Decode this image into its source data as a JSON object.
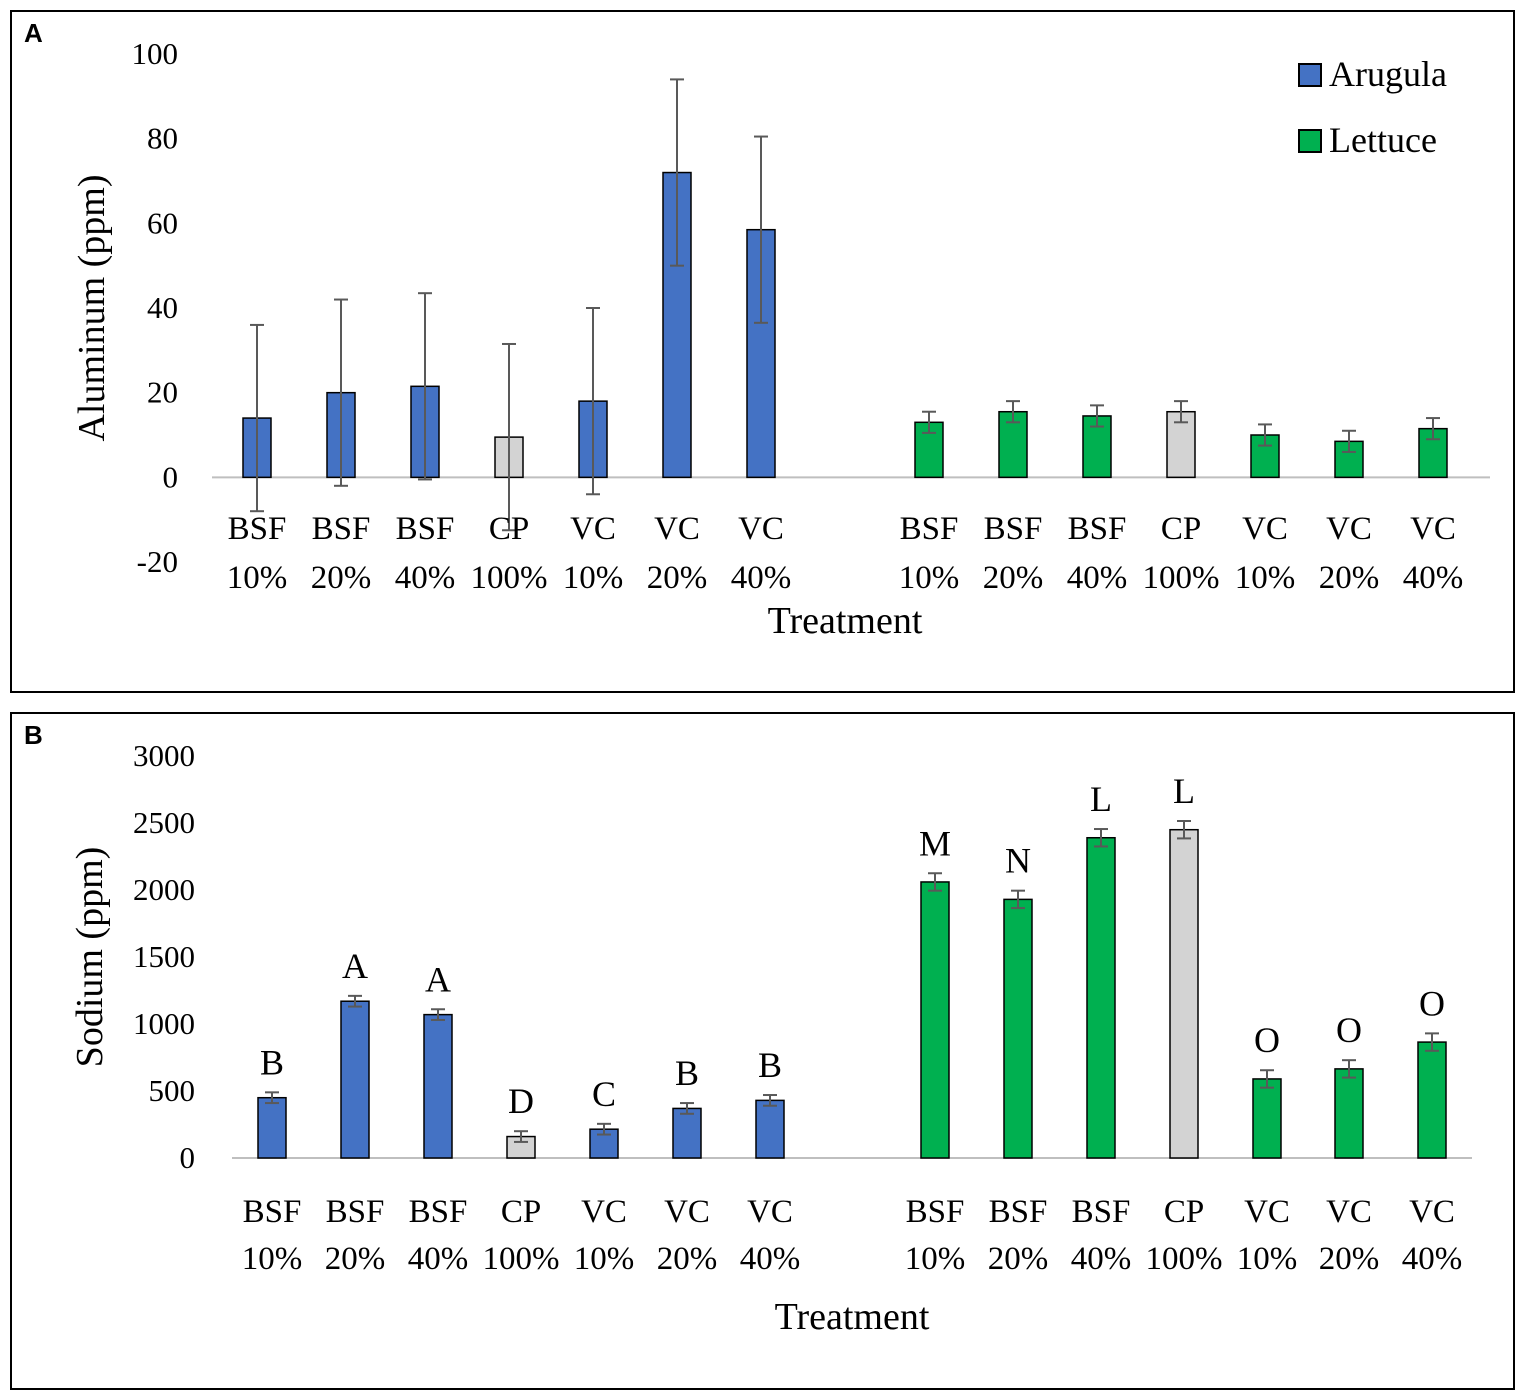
{
  "panels": [
    {
      "letter": "A"
    },
    {
      "letter": "B"
    }
  ],
  "colors": {
    "arugula": "#4472C4",
    "lettuce": "#00B050",
    "control": "#D3D3D3",
    "error_bar": "#595959",
    "axis": "#BFBFBF"
  },
  "chart_data": [
    {
      "type": "bar",
      "title": "",
      "xlabel": "Treatment",
      "ylabel": "Aluminum (ppm)",
      "ylim": [
        -20,
        100
      ],
      "yticks": [
        -20,
        0,
        20,
        40,
        60,
        80,
        100
      ],
      "legend": {
        "position": "top-right",
        "entries": [
          "Arugula",
          "Lettuce"
        ]
      },
      "series": [
        {
          "name": "Arugula",
          "categories": [
            [
              "BSF",
              "10%"
            ],
            [
              "BSF",
              "20%"
            ],
            [
              "BSF",
              "40%"
            ],
            [
              "CP",
              "100%"
            ],
            [
              "VC",
              "10%"
            ],
            [
              "VC",
              "20%"
            ],
            [
              "VC",
              "40%"
            ]
          ],
          "values": [
            14,
            20,
            21.5,
            9.5,
            18,
            72,
            58.5
          ],
          "errors": [
            22,
            22,
            22,
            22,
            22,
            22,
            22
          ],
          "letters": [
            "",
            "",
            "",
            "",
            "",
            "",
            ""
          ]
        },
        {
          "name": "Lettuce",
          "categories": [
            [
              "BSF",
              "10%"
            ],
            [
              "BSF",
              "20%"
            ],
            [
              "BSF",
              "40%"
            ],
            [
              "CP",
              "100%"
            ],
            [
              "VC",
              "10%"
            ],
            [
              "VC",
              "20%"
            ],
            [
              "VC",
              "40%"
            ]
          ],
          "values": [
            13,
            15.5,
            14.5,
            15.5,
            10,
            8.5,
            11.5
          ],
          "errors": [
            2.5,
            2.5,
            2.5,
            2.5,
            2.5,
            2.5,
            2.5
          ],
          "letters": [
            "",
            "",
            "",
            "",
            "",
            "",
            ""
          ]
        }
      ],
      "control_category": "CP"
    },
    {
      "type": "bar",
      "title": "",
      "xlabel": "Treatment",
      "ylabel": "Sodium (ppm)",
      "ylim": [
        0,
        3000
      ],
      "yticks": [
        0,
        500,
        1000,
        1500,
        2000,
        2500,
        3000
      ],
      "legend": null,
      "series": [
        {
          "name": "Arugula",
          "categories": [
            [
              "BSF",
              "10%"
            ],
            [
              "BSF",
              "20%"
            ],
            [
              "BSF",
              "40%"
            ],
            [
              "CP",
              "100%"
            ],
            [
              "VC",
              "10%"
            ],
            [
              "VC",
              "20%"
            ],
            [
              "VC",
              "40%"
            ]
          ],
          "values": [
            450,
            1170,
            1070,
            160,
            215,
            370,
            430
          ],
          "errors": [
            40,
            40,
            40,
            40,
            40,
            40,
            40
          ],
          "letters": [
            "B",
            "A",
            "A",
            "D",
            "C",
            "B",
            "B"
          ]
        },
        {
          "name": "Lettuce",
          "categories": [
            [
              "BSF",
              "10%"
            ],
            [
              "BSF",
              "20%"
            ],
            [
              "BSF",
              "40%"
            ],
            [
              "CP",
              "100%"
            ],
            [
              "VC",
              "10%"
            ],
            [
              "VC",
              "20%"
            ],
            [
              "VC",
              "40%"
            ]
          ],
          "values": [
            2060,
            1930,
            2390,
            2450,
            590,
            665,
            865
          ],
          "errors": [
            65,
            65,
            65,
            65,
            65,
            65,
            65
          ],
          "letters": [
            "M",
            "N",
            "L",
            "L",
            "O",
            "O",
            "O"
          ]
        }
      ],
      "control_category": "CP"
    }
  ]
}
